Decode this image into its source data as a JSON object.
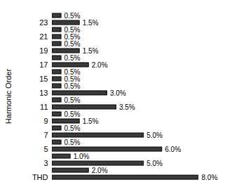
{
  "chart_data": {
    "type": "bar",
    "orientation": "horizontal",
    "y_label": "Harmonic Order",
    "categories": [
      "THD",
      null,
      "3",
      null,
      "5",
      null,
      "7",
      null,
      "9",
      null,
      "11",
      null,
      "13",
      null,
      "15",
      null,
      "17",
      null,
      "19",
      null,
      "21",
      null,
      "23",
      null
    ],
    "values": [
      8.0,
      2.0,
      5.0,
      1.0,
      6.0,
      0.5,
      5.0,
      0.5,
      1.5,
      0.5,
      3.5,
      0.5,
      3.0,
      0.5,
      0.5,
      0.5,
      2.0,
      0.5,
      1.5,
      0.5,
      0.5,
      0.5,
      1.5,
      0.5
    ],
    "value_labels": [
      "8.0%",
      "2.0%",
      "5.0%",
      "1.0%",
      "6.0%",
      "0.5%",
      "5.0%",
      "0.5%",
      "1.5%",
      "0.5%",
      "3.5%",
      "0.5%",
      "3.0%",
      "0.5%",
      "0.5%",
      "0.5%",
      "2.0%",
      "0.5%",
      "1.5%",
      "0.5%",
      "0.5%",
      "0.5%",
      "1.5%",
      "0.5%"
    ],
    "xlim": [
      0,
      8
    ],
    "data_labels": true,
    "tick_labels": "y",
    "color": "#3a3a3a",
    "grid": false
  }
}
